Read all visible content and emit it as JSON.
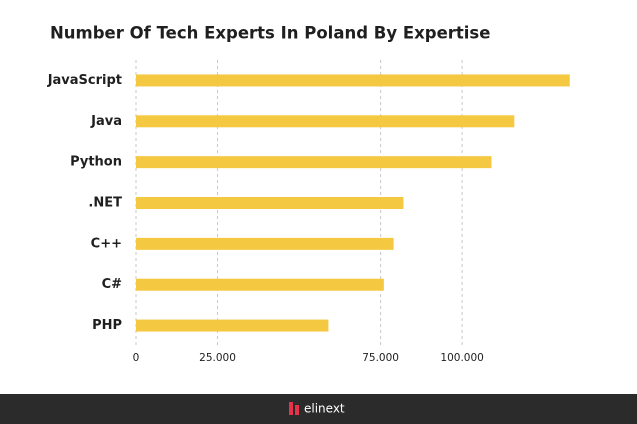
{
  "chart_data": {
    "type": "hbar",
    "title": "Number Of Tech Experts In Poland By Expertise",
    "categories": [
      "JavaScript",
      "Java",
      "Python",
      ".NET",
      "C++",
      "C#",
      "PHP"
    ],
    "values": [
      133000,
      116000,
      109000,
      82000,
      79000,
      76000,
      59000
    ],
    "color": "#f5c842",
    "xlim": [
      0,
      134000
    ],
    "xticks": [
      0,
      {
        "value": 25000,
        "label": "25.000"
      },
      {
        "value": 75000,
        "label": "75.000"
      },
      {
        "value": 100000,
        "label": "100.000"
      }
    ],
    "grid": true
  },
  "footer": {
    "brand": "elinext"
  }
}
